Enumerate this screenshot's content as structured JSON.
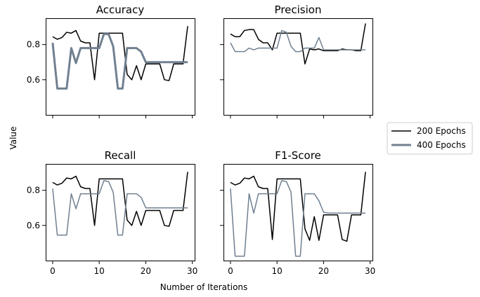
{
  "figure": {
    "xlabel": "Number of Iterations",
    "ylabel": "Value"
  },
  "legend": {
    "placement": "right",
    "entries": [
      {
        "label": "200 Epochs",
        "color": "#000000"
      },
      {
        "label": "400 Epochs",
        "color": "#708090"
      }
    ]
  },
  "chart_data": [
    {
      "type": "line",
      "title": "Accuracy",
      "xlim": [
        -1.5,
        30.5
      ],
      "ylim": [
        0.4,
        0.95
      ],
      "xticks": [
        0,
        10,
        20,
        30
      ],
      "yticks": [
        0.6,
        0.8
      ],
      "series": [
        {
          "name": "200 Epochs",
          "color": "#000000",
          "width": 1.5,
          "x": [
            0,
            1,
            2,
            3,
            4,
            5,
            6,
            7,
            8,
            9,
            10,
            11,
            12,
            13,
            14,
            15,
            16,
            17,
            18,
            19,
            20,
            21,
            22,
            23,
            24,
            25,
            26,
            27,
            28,
            29
          ],
          "values": [
            0.845,
            0.83,
            0.84,
            0.87,
            0.865,
            0.88,
            0.82,
            0.81,
            0.81,
            0.6,
            0.865,
            0.865,
            0.865,
            0.865,
            0.865,
            0.865,
            0.63,
            0.6,
            0.68,
            0.6,
            0.69,
            0.69,
            0.69,
            0.69,
            0.6,
            0.595,
            0.69,
            0.69,
            0.69,
            0.905
          ]
        },
        {
          "name": "400 Epochs",
          "color": "#708090",
          "width": 3,
          "x": [
            0,
            1,
            2,
            3,
            4,
            5,
            6,
            7,
            8,
            9,
            10,
            11,
            12,
            13,
            14,
            15,
            16,
            17,
            18,
            19,
            20,
            21,
            22,
            23,
            24,
            25,
            26,
            27,
            28,
            29
          ],
          "values": [
            0.81,
            0.55,
            0.55,
            0.55,
            0.78,
            0.695,
            0.78,
            0.78,
            0.78,
            0.78,
            0.78,
            0.86,
            0.86,
            0.79,
            0.55,
            0.55,
            0.78,
            0.78,
            0.78,
            0.76,
            0.7,
            0.7,
            0.7,
            0.7,
            0.7,
            0.7,
            0.7,
            0.7,
            0.7,
            0.7
          ]
        }
      ]
    },
    {
      "type": "line",
      "title": "Precision",
      "xlim": [
        -1.5,
        30.5
      ],
      "ylim": [
        0.4,
        0.95
      ],
      "xticks": [
        0,
        10,
        20,
        30
      ],
      "yticks": [
        0.6,
        0.8
      ],
      "series": [
        {
          "name": "200 Epochs",
          "color": "#000000",
          "width": 1.5,
          "x": [
            0,
            1,
            2,
            3,
            4,
            5,
            6,
            7,
            8,
            9,
            10,
            11,
            12,
            13,
            14,
            15,
            16,
            17,
            18,
            19,
            20,
            21,
            22,
            23,
            24,
            25,
            26,
            27,
            28,
            29
          ],
          "values": [
            0.86,
            0.845,
            0.845,
            0.88,
            0.885,
            0.885,
            0.83,
            0.81,
            0.81,
            0.77,
            0.865,
            0.865,
            0.865,
            0.865,
            0.865,
            0.865,
            0.69,
            0.775,
            0.77,
            0.775,
            0.765,
            0.765,
            0.765,
            0.765,
            0.775,
            0.77,
            0.77,
            0.765,
            0.765,
            0.92
          ]
        },
        {
          "name": "400 Epochs",
          "color": "#708090",
          "width": 1.5,
          "x": [
            0,
            1,
            2,
            3,
            4,
            5,
            6,
            7,
            8,
            9,
            10,
            11,
            12,
            13,
            14,
            15,
            16,
            17,
            18,
            19,
            20,
            21,
            22,
            23,
            24,
            25,
            26,
            27,
            28,
            29
          ],
          "values": [
            0.81,
            0.76,
            0.76,
            0.76,
            0.78,
            0.77,
            0.78,
            0.78,
            0.78,
            0.78,
            0.78,
            0.88,
            0.87,
            0.79,
            0.76,
            0.76,
            0.78,
            0.78,
            0.78,
            0.84,
            0.77,
            0.77,
            0.77,
            0.77,
            0.77,
            0.77,
            0.77,
            0.77,
            0.77,
            0.77
          ]
        }
      ]
    },
    {
      "type": "line",
      "title": "Recall",
      "xlim": [
        -1.5,
        30.5
      ],
      "ylim": [
        0.4,
        0.95
      ],
      "xticks": [
        0,
        10,
        20,
        30
      ],
      "yticks": [
        0.6,
        0.8
      ],
      "series": [
        {
          "name": "200 Epochs",
          "color": "#000000",
          "width": 1.5,
          "x": [
            0,
            1,
            2,
            3,
            4,
            5,
            6,
            7,
            8,
            9,
            10,
            11,
            12,
            13,
            14,
            15,
            16,
            17,
            18,
            19,
            20,
            21,
            22,
            23,
            24,
            25,
            26,
            27,
            28,
            29
          ],
          "values": [
            0.845,
            0.83,
            0.84,
            0.87,
            0.865,
            0.88,
            0.82,
            0.81,
            0.81,
            0.6,
            0.865,
            0.865,
            0.865,
            0.865,
            0.865,
            0.865,
            0.63,
            0.6,
            0.68,
            0.6,
            0.685,
            0.685,
            0.685,
            0.685,
            0.6,
            0.595,
            0.685,
            0.685,
            0.685,
            0.905
          ]
        },
        {
          "name": "400 Epochs",
          "color": "#708090",
          "width": 1.5,
          "x": [
            0,
            1,
            2,
            3,
            4,
            5,
            6,
            7,
            8,
            9,
            10,
            11,
            12,
            13,
            14,
            15,
            16,
            17,
            18,
            19,
            20,
            21,
            22,
            23,
            24,
            25,
            26,
            27,
            28,
            29
          ],
          "values": [
            0.81,
            0.545,
            0.545,
            0.545,
            0.78,
            0.695,
            0.78,
            0.78,
            0.78,
            0.78,
            0.78,
            0.855,
            0.85,
            0.79,
            0.545,
            0.545,
            0.78,
            0.78,
            0.78,
            0.76,
            0.7,
            0.7,
            0.7,
            0.7,
            0.7,
            0.7,
            0.7,
            0.7,
            0.7,
            0.7
          ]
        }
      ]
    },
    {
      "type": "line",
      "title": "F1-Score",
      "xlim": [
        -1.5,
        30.5
      ],
      "ylim": [
        0.4,
        0.95
      ],
      "xticks": [
        0,
        10,
        20,
        30
      ],
      "yticks": [
        0.6,
        0.8
      ],
      "series": [
        {
          "name": "200 Epochs",
          "color": "#000000",
          "width": 1.5,
          "x": [
            0,
            1,
            2,
            3,
            4,
            5,
            6,
            7,
            8,
            9,
            10,
            11,
            12,
            13,
            14,
            15,
            16,
            17,
            18,
            19,
            20,
            21,
            22,
            23,
            24,
            25,
            26,
            27,
            28,
            29
          ],
          "values": [
            0.845,
            0.83,
            0.84,
            0.87,
            0.865,
            0.88,
            0.82,
            0.81,
            0.81,
            0.52,
            0.865,
            0.865,
            0.865,
            0.865,
            0.865,
            0.865,
            0.58,
            0.515,
            0.65,
            0.515,
            0.66,
            0.66,
            0.66,
            0.66,
            0.52,
            0.51,
            0.66,
            0.66,
            0.66,
            0.905
          ]
        },
        {
          "name": "400 Epochs",
          "color": "#708090",
          "width": 1.5,
          "x": [
            0,
            1,
            2,
            3,
            4,
            5,
            6,
            7,
            8,
            9,
            10,
            11,
            12,
            13,
            14,
            15,
            16,
            17,
            18,
            19,
            20,
            21,
            22,
            23,
            24,
            25,
            26,
            27,
            28,
            29
          ],
          "values": [
            0.81,
            0.425,
            0.425,
            0.425,
            0.78,
            0.67,
            0.78,
            0.78,
            0.78,
            0.78,
            0.78,
            0.855,
            0.85,
            0.79,
            0.425,
            0.425,
            0.78,
            0.78,
            0.78,
            0.74,
            0.675,
            0.67,
            0.67,
            0.67,
            0.67,
            0.67,
            0.67,
            0.67,
            0.67,
            0.67
          ]
        }
      ]
    }
  ]
}
